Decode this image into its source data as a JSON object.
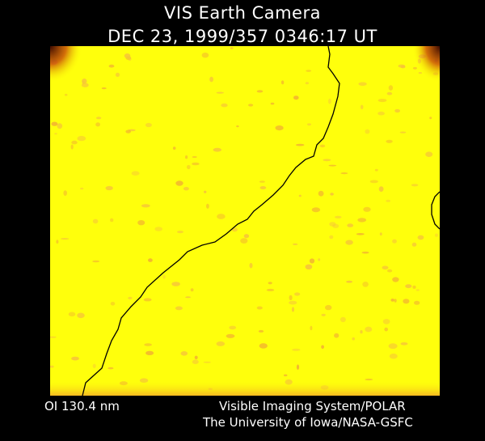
{
  "header": {
    "title": "VIS Earth Camera",
    "timestamp": "DEC 23, 1999/357 0346:17 UT"
  },
  "footer": {
    "filter": "OI  130.4 nm",
    "instrument": "Visible Imaging System/POLAR",
    "institution": "The University of Iowa/NASA-GSFC"
  },
  "colors": {
    "background": "#000000",
    "text": "#ffffff",
    "image_field": "#ffff0c",
    "speckle": "#f4b43c",
    "corner_dark": "#6a1400",
    "outline": "#000000"
  }
}
